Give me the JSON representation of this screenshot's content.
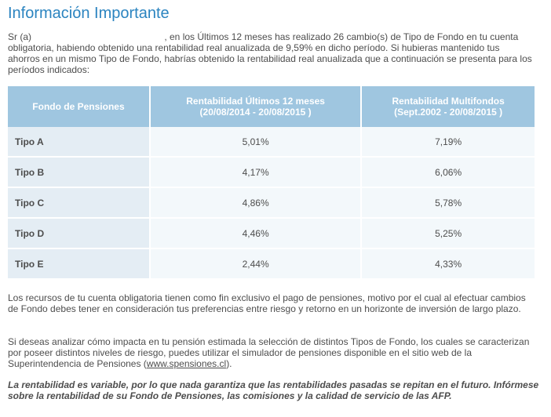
{
  "title": "Información Importante",
  "intro": {
    "prefix": "Sr (a) ",
    "text": ", en los Últimos 12 meses has realizado 26 cambio(s) de Tipo de Fondo en tu cuenta obligatoria, habiendo obtenido una rentabilidad real anualizada de 9,59% en dicho período. Si hubieras mantenido tus ahorros en un mismo Tipo de Fondo, habrías obtenido la rentabilidad real anualizada que a continuación se presenta para los períodos indicados:"
  },
  "table": {
    "headers": [
      {
        "line1": "Fondo de Pensiones",
        "line2": ""
      },
      {
        "line1": "Rentabilidad Últimos 12 meses",
        "line2": "(20/08/2014 - 20/08/2015 )"
      },
      {
        "line1": "Rentabilidad Multifondos",
        "line2": "(Sept.2002 - 20/08/2015 )"
      }
    ],
    "rows": [
      {
        "fondo": "Tipo A",
        "ult12": "5,01%",
        "multi": "7,19%"
      },
      {
        "fondo": "Tipo B",
        "ult12": "4,17%",
        "multi": "6,06%"
      },
      {
        "fondo": "Tipo C",
        "ult12": "4,86%",
        "multi": "5,78%"
      },
      {
        "fondo": "Tipo D",
        "ult12": "4,46%",
        "multi": "5,25%"
      },
      {
        "fondo": "Tipo E",
        "ult12": "2,44%",
        "multi": "4,33%"
      }
    ]
  },
  "paragraph2": "Los recursos de tu cuenta obligatoria tienen como fin exclusivo el pago de pensiones, motivo por el cual al efectuar cambios de Fondo debes tener en consideración tus preferencias entre riesgo y retorno en un horizonte de inversión de largo plazo.",
  "paragraph3": {
    "text": "Si deseas analizar cómo impacta en tu pensión estimada la selección de distintos Tipos de Fondo, los cuales se caracterizan por poseer distintos niveles de riesgo, puedes utilizar el simulador de pensiones disponible en el sitio web de la Superintendencia de Pensiones (",
    "link": "www.spensiones.cl",
    "suffix": ")."
  },
  "disclaimer": "La rentabilidad es variable, por lo que nada garantiza que las rentabilidades pasadas se repitan en el futuro. Infórmese sobre la rentabilidad de su Fondo de Pensiones, las comisiones y la calidad de servicio de las AFP."
}
